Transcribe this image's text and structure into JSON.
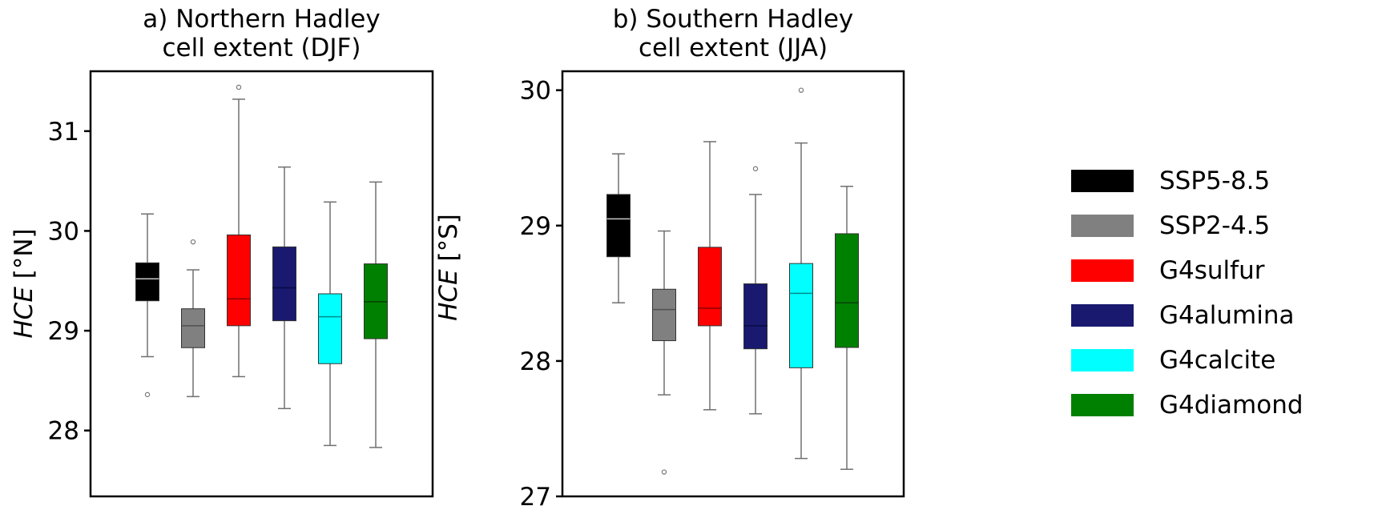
{
  "chart_data": [
    {
      "type": "box",
      "title": "a) Northern Hadley\ncell extent (DJF)",
      "title_lines": [
        "a) Northern Hadley",
        "cell extent (DJF)"
      ],
      "ylabel": "HCE [°N]",
      "ylabel_italic_part": "HCE",
      "ylabel_unit": "[°N]",
      "ylim": [
        27.34,
        31.6
      ],
      "yticks": [
        28,
        29,
        30,
        31
      ],
      "grid": false,
      "categories": [
        "SSP5-8.5",
        "SSP2-4.5",
        "G4sulfur",
        "G4alumina",
        "G4calcite",
        "G4diamond"
      ],
      "series": [
        {
          "name": "SSP5-8.5",
          "whisker_low": 28.74,
          "q1": 29.3,
          "median": 29.52,
          "q3": 29.68,
          "whisker_high": 30.17,
          "outliers": [
            28.36
          ]
        },
        {
          "name": "SSP2-4.5",
          "whisker_low": 28.34,
          "q1": 28.83,
          "median": 29.05,
          "q3": 29.22,
          "whisker_high": 29.61,
          "outliers": [
            29.89
          ]
        },
        {
          "name": "G4sulfur",
          "whisker_low": 28.54,
          "q1": 29.05,
          "median": 29.32,
          "q3": 29.96,
          "whisker_high": 31.32,
          "outliers": [
            31.44
          ]
        },
        {
          "name": "G4alumina",
          "whisker_low": 28.22,
          "q1": 29.1,
          "median": 29.43,
          "q3": 29.84,
          "whisker_high": 30.64,
          "outliers": []
        },
        {
          "name": "G4calcite",
          "whisker_low": 27.85,
          "q1": 28.67,
          "median": 29.14,
          "q3": 29.37,
          "whisker_high": 30.29,
          "outliers": []
        },
        {
          "name": "G4diamond",
          "whisker_low": 27.83,
          "q1": 28.92,
          "median": 29.29,
          "q3": 29.67,
          "whisker_high": 30.49,
          "outliers": []
        }
      ]
    },
    {
      "type": "box",
      "title": "b) Southern Hadley\ncell extent (JJA)",
      "title_lines": [
        "b) Southern Hadley",
        "cell extent (JJA)"
      ],
      "ylabel": "HCE [°S]",
      "ylabel_italic_part": "HCE",
      "ylabel_unit": "[°S]",
      "ylim": [
        27.0,
        30.14
      ],
      "yticks": [
        27,
        28,
        29,
        30
      ],
      "grid": false,
      "categories": [
        "SSP5-8.5",
        "SSP2-4.5",
        "G4sulfur",
        "G4alumina",
        "G4calcite",
        "G4diamond"
      ],
      "series": [
        {
          "name": "SSP5-8.5",
          "whisker_low": 28.43,
          "q1": 28.77,
          "median": 29.05,
          "q3": 29.23,
          "whisker_high": 29.53,
          "outliers": []
        },
        {
          "name": "SSP2-4.5",
          "whisker_low": 27.75,
          "q1": 28.15,
          "median": 28.38,
          "q3": 28.53,
          "whisker_high": 28.96,
          "outliers": [
            27.18
          ]
        },
        {
          "name": "G4sulfur",
          "whisker_low": 27.64,
          "q1": 28.26,
          "median": 28.39,
          "q3": 28.84,
          "whisker_high": 29.62,
          "outliers": []
        },
        {
          "name": "G4alumina",
          "whisker_low": 27.61,
          "q1": 28.09,
          "median": 28.26,
          "q3": 28.57,
          "whisker_high": 29.23,
          "outliers": [
            29.42
          ]
        },
        {
          "name": "G4calcite",
          "whisker_low": 27.28,
          "q1": 27.95,
          "median": 28.5,
          "q3": 28.72,
          "whisker_high": 29.61,
          "outliers": [
            30.0
          ]
        },
        {
          "name": "G4diamond",
          "whisker_low": 27.2,
          "q1": 28.1,
          "median": 28.43,
          "q3": 28.94,
          "whisker_high": 29.29,
          "outliers": []
        }
      ]
    }
  ],
  "legend": {
    "position": "right",
    "items": [
      {
        "label": "SSP5-8.5",
        "color": "#000000"
      },
      {
        "label": "SSP2-4.5",
        "color": "#808080"
      },
      {
        "label": "G4sulfur",
        "color": "#ff0000"
      },
      {
        "label": "G4alumina",
        "color": "#191970"
      },
      {
        "label": "G4calcite",
        "color": "#00ffff"
      },
      {
        "label": "G4diamond",
        "color": "#008000"
      }
    ]
  },
  "styles": {
    "median_colors": [
      "#c8c8c8",
      "#505050",
      "#8b0000",
      "#0a0a40",
      "#008b8b",
      "#004000"
    ],
    "whisker_color": "#707070",
    "frame_color": "#000000"
  }
}
